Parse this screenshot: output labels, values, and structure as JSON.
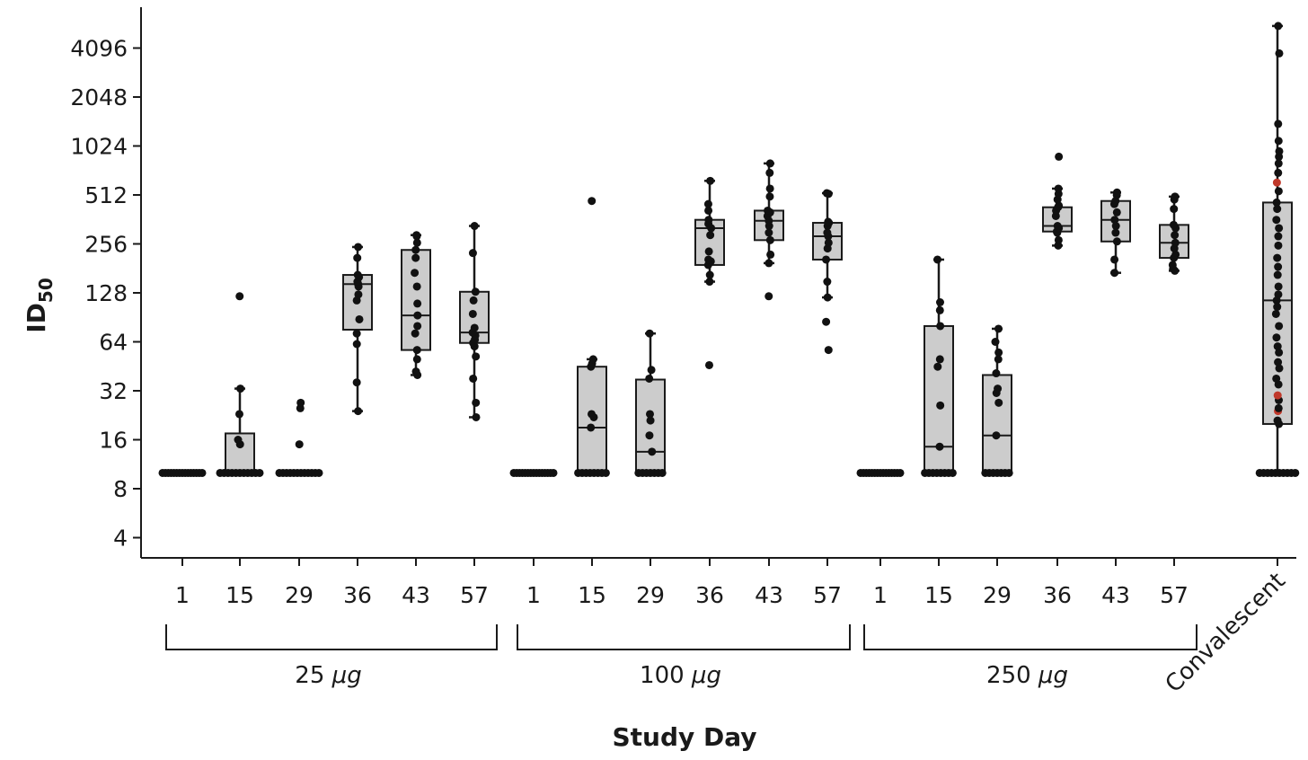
{
  "chart_data": {
    "type": "box",
    "title": "",
    "xlabel": "Study Day",
    "ylabel": "ID",
    "ylabel_subscript": "50",
    "y_scale": "log2",
    "ylim": [
      3.2,
      6500
    ],
    "yticks": [
      4,
      8,
      16,
      32,
      64,
      128,
      256,
      512,
      1024,
      2048,
      4096
    ],
    "ytick_labels": [
      "4",
      "8",
      "16",
      "32",
      "64",
      "128",
      "256",
      "512",
      "1024",
      "2048",
      "4096"
    ],
    "groups": [
      {
        "label_main": "25 ",
        "label_unit": "μg",
        "categories": [
          {
            "label": "1",
            "box": null,
            "points": [
              10,
              10,
              10,
              10,
              10,
              10,
              10,
              10,
              10,
              10,
              10,
              10,
              10,
              10,
              10
            ]
          },
          {
            "label": "15",
            "box": {
              "min": 10,
              "q1": 10,
              "median": 10,
              "q3": 17.5,
              "max": 33
            },
            "points": [
              10,
              10,
              10,
              10,
              10,
              10,
              10,
              10,
              10,
              10,
              10,
              15,
              16,
              23,
              33,
              122
            ]
          },
          {
            "label": "29",
            "box": null,
            "points": [
              10,
              10,
              10,
              10,
              10,
              10,
              10,
              10,
              10,
              10,
              10,
              10,
              15,
              25,
              27
            ]
          },
          {
            "label": "36",
            "box": {
              "min": 24,
              "q1": 76,
              "median": 145,
              "q3": 165,
              "max": 245
            },
            "points": [
              24,
              36,
              62,
              72,
              88,
              115,
              125,
              140,
              145,
              150,
              160,
              165,
              210,
              245
            ]
          },
          {
            "label": "43",
            "box": {
              "min": 40,
              "q1": 57,
              "median": 93,
              "q3": 235,
              "max": 290
            },
            "points": [
              40,
              42,
              50,
              57,
              72,
              80,
              93,
              110,
              140,
              170,
              210,
              235,
              260,
              285,
              290
            ]
          },
          {
            "label": "57",
            "box": {
              "min": 22,
              "q1": 63,
              "median": 73,
              "q3": 130,
              "max": 330
            },
            "points": [
              22,
              27,
              38,
              52,
              60,
              63,
              66,
              70,
              73,
              78,
              95,
              115,
              130,
              225,
              330
            ]
          }
        ]
      },
      {
        "label_main": "100 ",
        "label_unit": "μg",
        "categories": [
          {
            "label": "1",
            "box": null,
            "points": [
              10,
              10,
              10,
              10,
              10,
              10,
              10,
              10,
              10,
              10,
              10,
              10,
              10,
              10,
              10
            ]
          },
          {
            "label": "15",
            "box": {
              "min": 10,
              "q1": 10,
              "median": 19,
              "q3": 45,
              "max": 50
            },
            "points": [
              10,
              10,
              10,
              10,
              10,
              10,
              10,
              10,
              19,
              22,
              23,
              45,
              47,
              50,
              470
            ]
          },
          {
            "label": "29",
            "box": {
              "min": 10,
              "q1": 10,
              "median": 13.5,
              "q3": 37.5,
              "max": 72
            },
            "points": [
              10,
              10,
              10,
              10,
              10,
              10,
              10,
              13.5,
              17,
              21,
              23,
              38,
              43,
              72
            ]
          },
          {
            "label": "36",
            "box": {
              "min": 150,
              "q1": 190,
              "median": 320,
              "q3": 360,
              "max": 625
            },
            "points": [
              46,
              150,
              165,
              190,
              200,
              205,
              230,
              290,
              320,
              340,
              360,
              410,
              450,
              625
            ]
          },
          {
            "label": "43",
            "box": {
              "min": 195,
              "q1": 270,
              "median": 355,
              "q3": 410,
              "max": 800
            },
            "points": [
              122,
              195,
              220,
              270,
              300,
              330,
              355,
              380,
              400,
              410,
              500,
              560,
              700,
              800
            ]
          },
          {
            "label": "57",
            "box": {
              "min": 120,
              "q1": 205,
              "median": 285,
              "q3": 345,
              "max": 525
            },
            "points": [
              57,
              85,
              120,
              150,
              205,
              240,
              260,
              285,
              300,
              330,
              345,
              350,
              520,
              525
            ]
          }
        ]
      },
      {
        "label_main": "250 ",
        "label_unit": "μg",
        "categories": [
          {
            "label": "1",
            "box": null,
            "points": [
              10,
              10,
              10,
              10,
              10,
              10,
              10,
              10,
              10,
              10,
              10,
              10,
              10,
              10,
              10
            ]
          },
          {
            "label": "15",
            "box": {
              "min": 10,
              "q1": 10,
              "median": 14.5,
              "q3": 80,
              "max": 205
            },
            "points": [
              10,
              10,
              10,
              10,
              10,
              10,
              10,
              10,
              14.5,
              26,
              45,
              50,
              80,
              100,
              112,
              205
            ]
          },
          {
            "label": "29",
            "box": {
              "min": 10,
              "q1": 10,
              "median": 17,
              "q3": 40,
              "max": 77
            },
            "points": [
              10,
              10,
              10,
              10,
              10,
              10,
              10,
              17,
              27,
              31,
              33,
              41,
              50,
              55,
              64,
              77
            ]
          },
          {
            "label": "36",
            "box": {
              "min": 250,
              "q1": 305,
              "median": 330,
              "q3": 430,
              "max": 560
            },
            "points": [
              250,
              270,
              300,
              305,
              320,
              330,
              380,
              410,
              430,
              440,
              480,
              520,
              560,
              880
            ]
          },
          {
            "label": "43",
            "box": {
              "min": 170,
              "q1": 265,
              "median": 360,
              "q3": 470,
              "max": 530
            },
            "points": [
              170,
              205,
              265,
              300,
              330,
              360,
              400,
              450,
              470,
              510,
              530
            ]
          },
          {
            "label": "57",
            "box": {
              "min": 175,
              "q1": 210,
              "median": 260,
              "q3": 335,
              "max": 500
            },
            "points": [
              175,
              180,
              190,
              210,
              220,
              240,
              260,
              290,
              320,
              335,
              420,
              480,
              500
            ]
          }
        ]
      }
    ],
    "standalone": {
      "label": "Convalescent",
      "box": {
        "min": 10,
        "q1": 20,
        "median": 115,
        "q3": 460,
        "max": 5600
      },
      "points": [
        10,
        10,
        10,
        10,
        10,
        10,
        10,
        10,
        10,
        10,
        20,
        21,
        24,
        25,
        28,
        30,
        35,
        38,
        44,
        48,
        55,
        60,
        68,
        80,
        95,
        105,
        115,
        125,
        140,
        165,
        185,
        210,
        250,
        285,
        320,
        360,
        420,
        460,
        540,
        610,
        700,
        800,
        880,
        950,
        1100,
        1400,
        3800,
        5600
      ],
      "highlight_points": [
        24,
        30,
        610
      ]
    },
    "colors": {
      "box_fill": "#cccccc",
      "stroke": "#1a1a1a",
      "point": "#111111",
      "highlight_point": "#c0392b"
    }
  }
}
